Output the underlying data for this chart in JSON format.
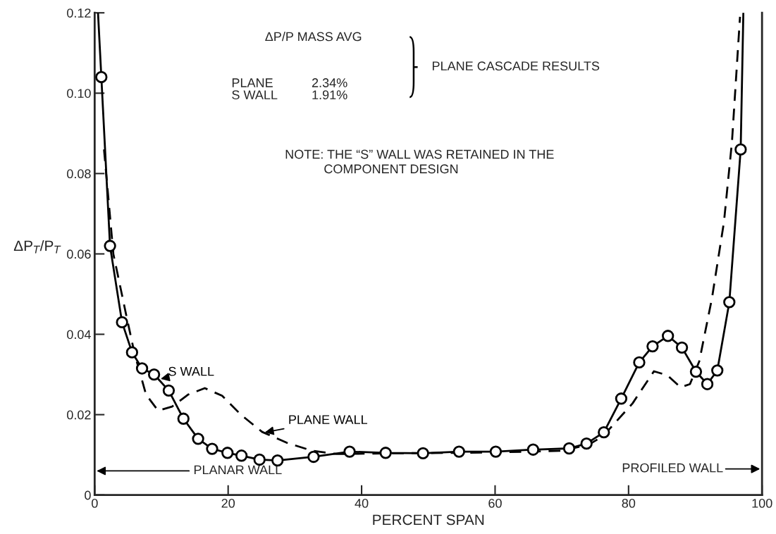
{
  "chart_data": {
    "type": "line",
    "xlabel": "PERCENT SPAN",
    "ylabel": "ΔP$_{T}$/P$_{T}$",
    "xlim": [
      0,
      100
    ],
    "ylim": [
      0,
      0.12
    ],
    "xticks": [
      0,
      20,
      40,
      60,
      80,
      100
    ],
    "yticks": [
      0,
      0.02,
      0.04,
      0.06,
      0.08,
      {
        "value": 0.1,
        "label": "0.10"
      },
      0.12
    ],
    "grid": false,
    "series": [
      {
        "name": "S WALL",
        "color": "#000000",
        "line_style": "solid",
        "marker": "none",
        "x": [
          0.5,
          1.0,
          2.3,
          4.1,
          5.6,
          7.1,
          8.9,
          11.1,
          13.3,
          15.5,
          17.6,
          19.9,
          22.0,
          24.7,
          27.4,
          32.8,
          38.2,
          43.6,
          49.2,
          54.6,
          60.1,
          65.7,
          71.1,
          73.7,
          76.3,
          78.9,
          81.6,
          83.6,
          85.9,
          88.0,
          90.1,
          91.8,
          93.3,
          95.1,
          96.8,
          97.2
        ],
        "values": [
          0.12,
          0.104,
          0.062,
          0.043,
          0.0355,
          0.0315,
          0.03,
          0.026,
          0.019,
          0.014,
          0.0115,
          0.0105,
          0.0098,
          0.0088,
          0.0086,
          0.0095,
          0.0108,
          0.0105,
          0.0104,
          0.0108,
          0.0108,
          0.0113,
          0.0116,
          0.0128,
          0.0156,
          0.024,
          0.033,
          0.037,
          0.0396,
          0.0367,
          0.0307,
          0.0276,
          0.031,
          0.048,
          0.086,
          0.12
        ]
      },
      {
        "type": "scatter",
        "color": "#000000",
        "marker": "circle",
        "x": [
          1.0,
          2.3,
          4.1,
          5.6,
          7.1,
          8.9,
          11.1,
          13.3,
          15.5,
          17.6,
          19.9,
          22.0,
          24.7,
          27.4,
          32.8,
          38.2,
          43.6,
          49.2,
          54.6,
          60.1,
          65.7,
          71.1,
          73.7,
          76.3,
          78.9,
          81.6,
          83.6,
          85.9,
          88.0,
          90.1,
          91.8,
          93.3,
          95.1,
          96.8
        ],
        "values": [
          0.104,
          0.062,
          0.043,
          0.0355,
          0.0315,
          0.03,
          0.026,
          0.019,
          0.014,
          0.0115,
          0.0105,
          0.0098,
          0.0088,
          0.0086,
          0.0095,
          0.0108,
          0.0105,
          0.0104,
          0.0108,
          0.0108,
          0.0113,
          0.0116,
          0.0128,
          0.0156,
          0.024,
          0.033,
          0.037,
          0.0396,
          0.0367,
          0.0307,
          0.0276,
          0.031,
          0.048,
          0.086
        ]
      },
      {
        "name": "PLANE WALL",
        "color": "#000000",
        "line_style": "dashed",
        "marker": "none",
        "x": [
          1.4,
          2.8,
          4.7,
          6.0,
          7.7,
          9.5,
          11.6,
          14.0,
          16.5,
          19.1,
          21.9,
          25.1,
          28.8,
          32.6,
          36.3,
          45.0,
          55.0,
          65.0,
          70.0,
          74.0,
          76.2,
          80.6,
          83.8,
          85.8,
          87.8,
          89.2,
          90.6,
          92.5,
          94.3,
          95.5,
          96.7
        ],
        "values": [
          0.086,
          0.06,
          0.045,
          0.035,
          0.025,
          0.021,
          0.022,
          0.025,
          0.0266,
          0.0247,
          0.02,
          0.0157,
          0.013,
          0.011,
          0.0102,
          0.0104,
          0.0105,
          0.0108,
          0.011,
          0.0125,
          0.0147,
          0.0228,
          0.0308,
          0.0298,
          0.0268,
          0.0276,
          0.0333,
          0.049,
          0.068,
          0.088,
          0.119
        ]
      }
    ],
    "annotations": [
      "ΔP/P MASS AVG",
      "PLANE",
      "2.34%",
      "S WALL",
      "1.91%",
      "PLANE CASCADE RESULTS",
      "NOTE: THE “S” WALL WAS RETAINED IN THE\n           COMPONENT DESIGN",
      "PLANAR WALL",
      "PROFILED WALL"
    ]
  }
}
